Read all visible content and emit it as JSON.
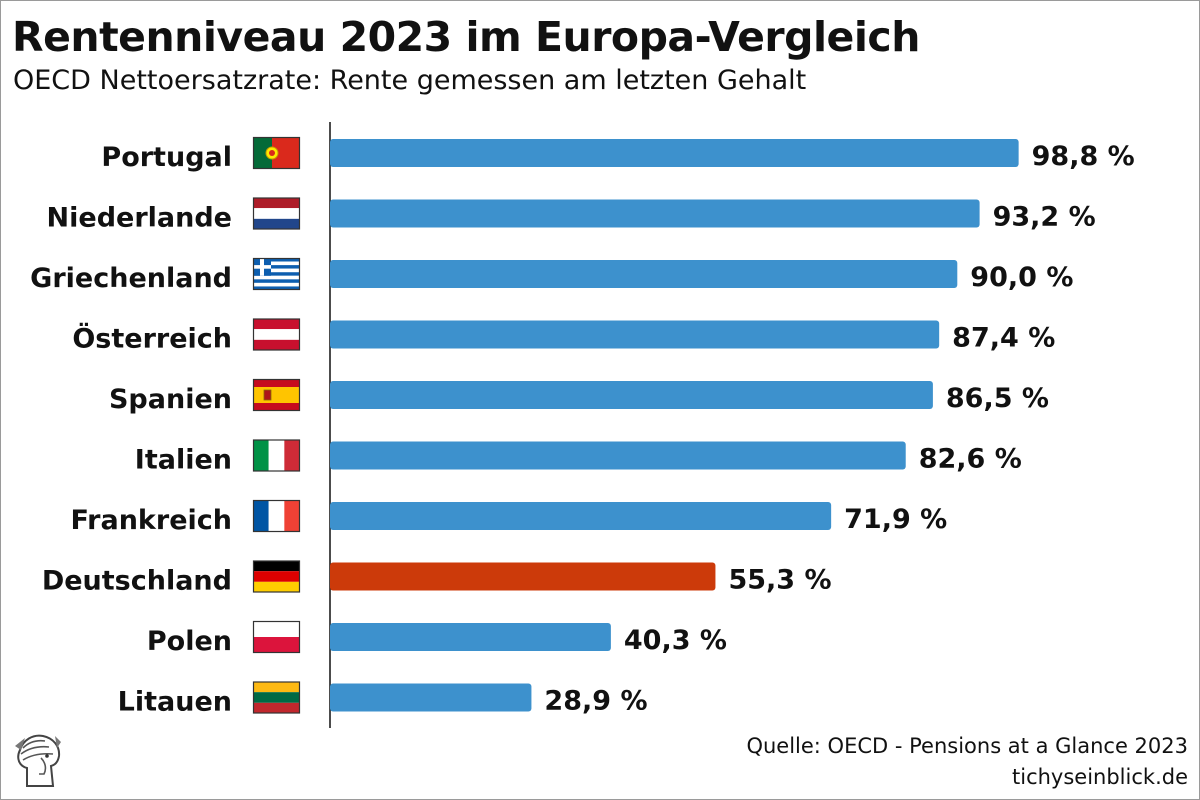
{
  "chart_title": "Rentenniveau 2023 im Europa-Vergleich",
  "chart_subtitle": "OECD Nettoersatzrate: Rente gemessen am letzten Gehalt",
  "source_line": "Quelle: OECD - Pensions at a Glance 2023",
  "publisher": "tichyseinblick.de",
  "colors": {
    "bar_default": "#3d91cd",
    "bar_highlight": "#cc3a0a",
    "text": "#111111"
  },
  "chart_data": {
    "type": "bar",
    "orientation": "horizontal",
    "title": "Rentenniveau 2023 im Europa-Vergleich",
    "subtitle": "OECD Nettoersatzrate: Rente gemessen am letzten Gehalt",
    "unit": "%",
    "categories": [
      "Portugal",
      "Niederlande",
      "Griechenland",
      "Österreich",
      "Spanien",
      "Italien",
      "Frankreich",
      "Deutschland",
      "Polen",
      "Litauen"
    ],
    "values": [
      98.8,
      93.2,
      90.0,
      87.4,
      86.5,
      82.6,
      71.9,
      55.3,
      40.3,
      28.9
    ],
    "value_labels": [
      "98,8 %",
      "93,2 %",
      "90,0 %",
      "87,4 %",
      "86,5 %",
      "82,6 %",
      "71,9 %",
      "55,3 %",
      "40,3 %",
      "28,9 %"
    ],
    "highlight_category": "Deutschland",
    "flags": [
      "portugal-flag-icon",
      "netherlands-flag-icon",
      "greece-flag-icon",
      "austria-flag-icon",
      "spain-flag-icon",
      "italy-flag-icon",
      "france-flag-icon",
      "germany-flag-icon",
      "poland-flag-icon",
      "lithuania-flag-icon"
    ],
    "xlim": [
      0,
      100
    ],
    "grid": false,
    "legend": "none"
  }
}
